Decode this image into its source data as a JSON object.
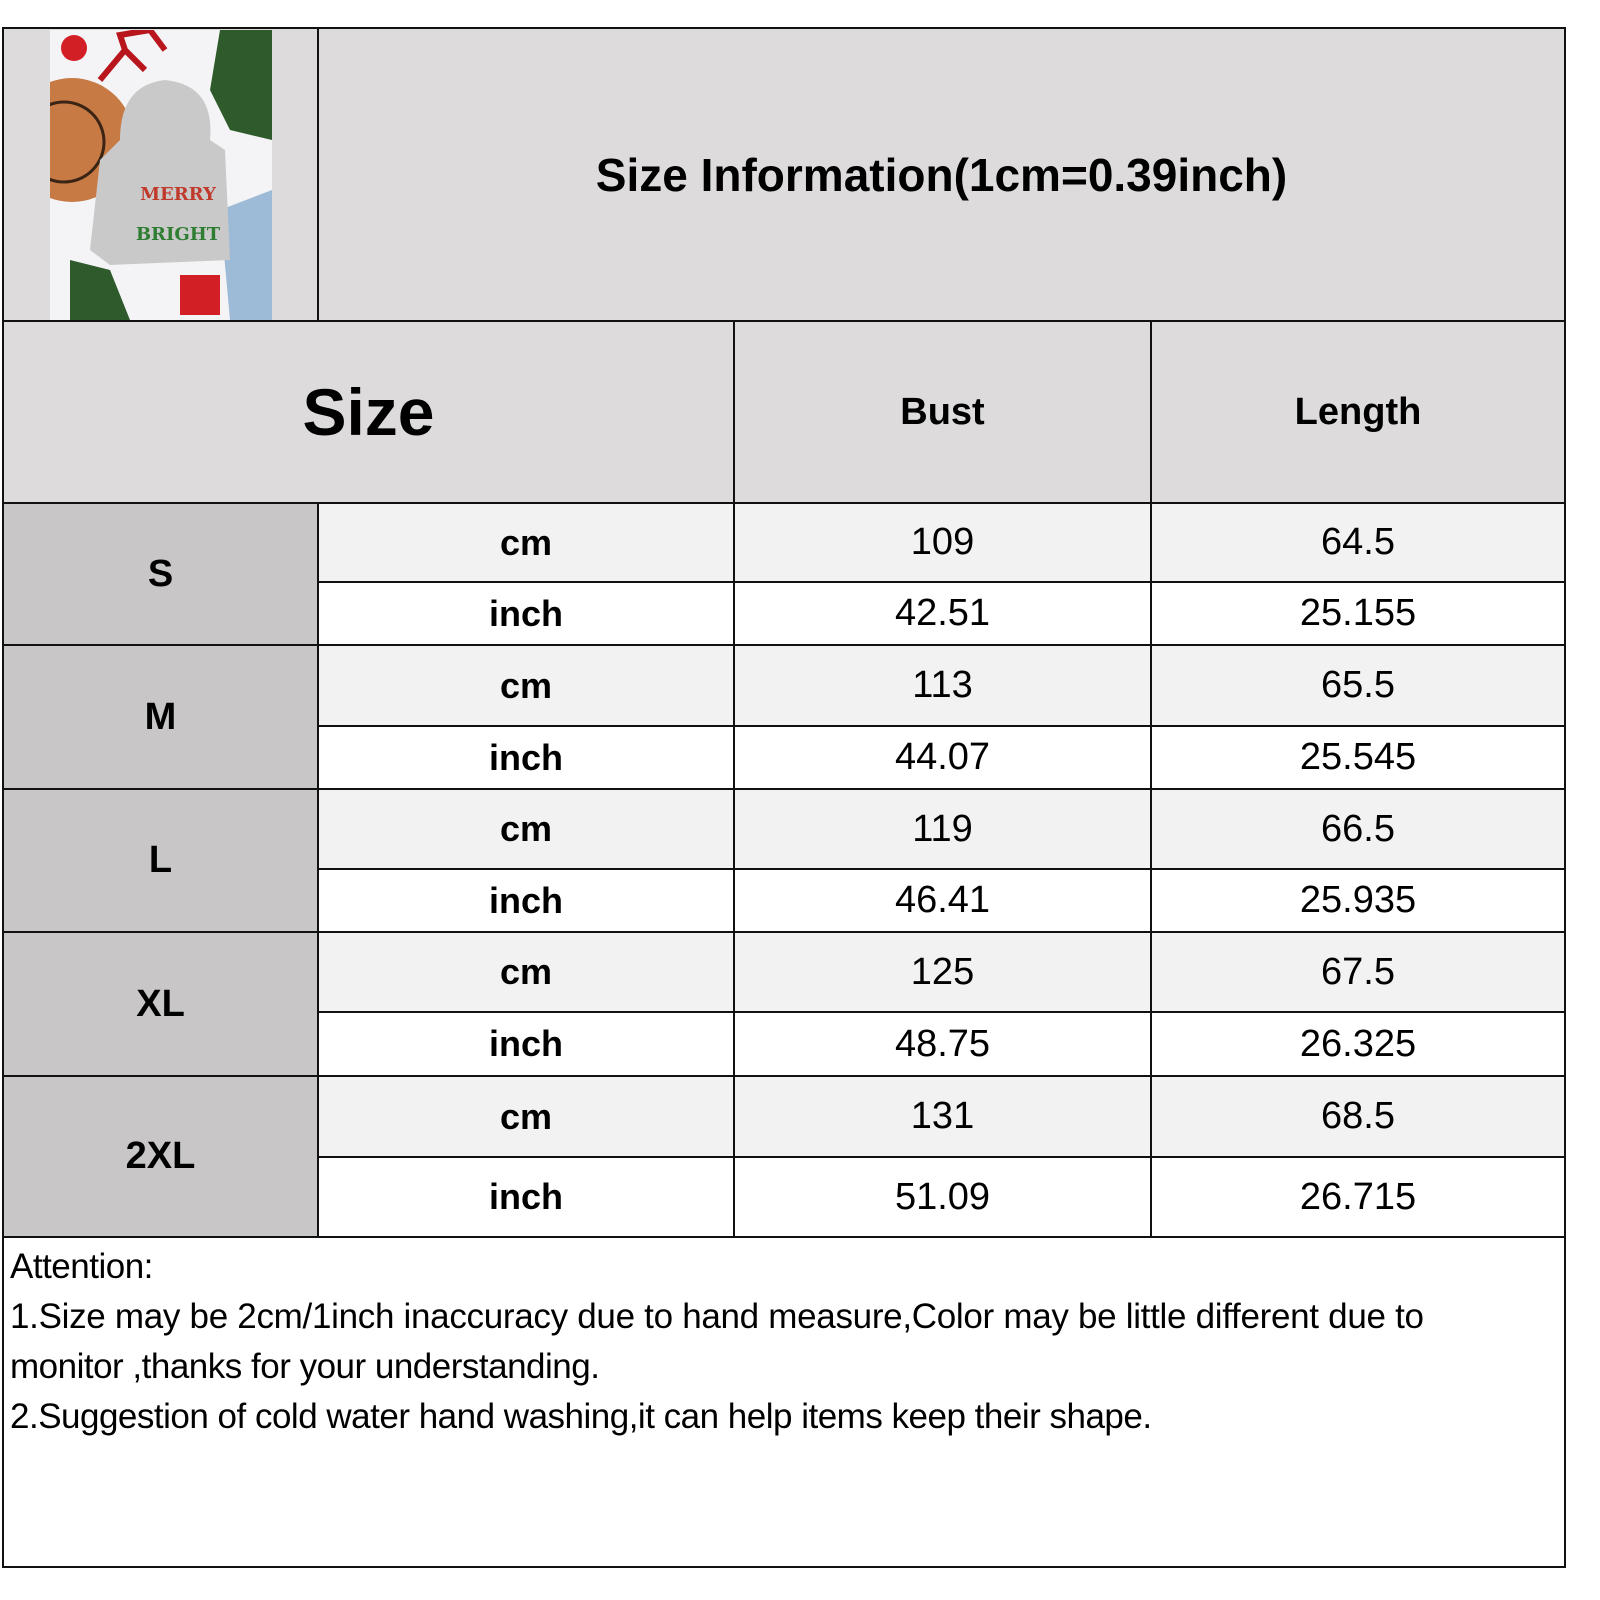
{
  "title": "Size Information(1cm=0.39inch)",
  "product_image": {
    "description_text": "MERRY & BRIGHT",
    "colors": {
      "hoodie": "#c9c9c9",
      "hat": "#c87a45",
      "accent": "#d21f26"
    }
  },
  "header": {
    "size": "Size",
    "bust": "Bust",
    "length": "Length"
  },
  "rows": [
    {
      "size": "S",
      "cm": {
        "unit": "cm",
        "bust": "109",
        "length": "64.5"
      },
      "inch": {
        "unit": "inch",
        "bust": "42.51",
        "length": "25.155"
      }
    },
    {
      "size": "M",
      "cm": {
        "unit": "cm",
        "bust": "113",
        "length": "65.5"
      },
      "inch": {
        "unit": "inch",
        "bust": "44.07",
        "length": "25.545"
      }
    },
    {
      "size": "L",
      "cm": {
        "unit": "cm",
        "bust": "119",
        "length": "66.5"
      },
      "inch": {
        "unit": "inch",
        "bust": "46.41",
        "length": "25.935"
      }
    },
    {
      "size": "XL",
      "cm": {
        "unit": "cm",
        "bust": "125",
        "length": "67.5"
      },
      "inch": {
        "unit": "inch",
        "bust": "48.75",
        "length": "26.325"
      }
    },
    {
      "size": "2XL",
      "cm": {
        "unit": "cm",
        "bust": "131",
        "length": "68.5"
      },
      "inch": {
        "unit": "inch",
        "bust": "51.09",
        "length": "26.715"
      }
    }
  ],
  "notes": {
    "heading": "Attention:",
    "line1a": "1.Size may be 2cm/1inch inaccuracy due to hand measure,Color may be little different due to",
    "line1b": "monitor ,thanks for your understanding.",
    "line2": "2.Suggestion of cold water hand washing,it can help items keep their shape."
  }
}
